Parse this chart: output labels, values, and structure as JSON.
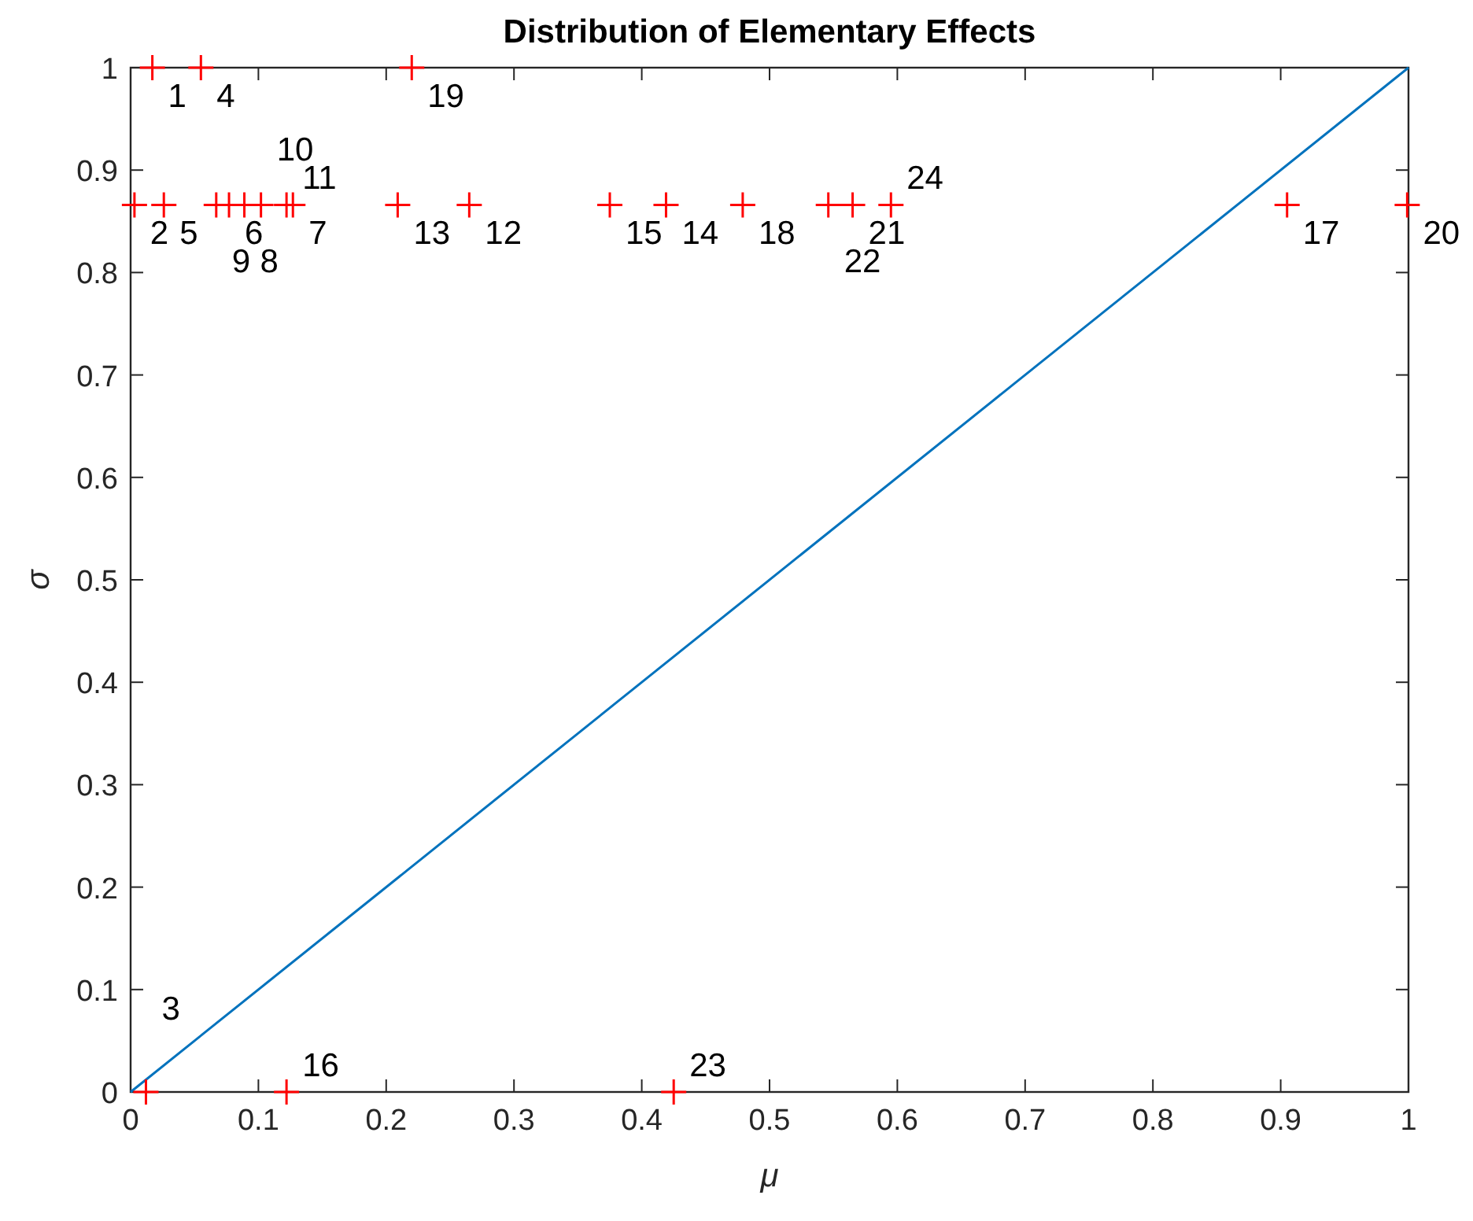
{
  "chart_data": {
    "type": "scatter",
    "title": "Distribution of Elementary Effects",
    "xlabel": "μ",
    "ylabel": "σ",
    "xlim": [
      0,
      1
    ],
    "xticks": [
      0,
      0.1,
      0.2,
      0.3,
      0.4,
      0.5,
      0.6,
      0.7,
      0.8,
      0.9,
      1
    ],
    "ylim": [
      0,
      1
    ],
    "yticks": [
      0,
      0.1,
      0.2,
      0.3,
      0.4,
      0.5,
      0.6,
      0.7,
      0.8,
      0.9,
      1
    ],
    "series": [
      {
        "type": "line",
        "color": "#0072bd",
        "x": [
          0,
          1
        ],
        "values": [
          0,
          1
        ],
        "marker": "none",
        "line_style": "solid"
      },
      {
        "color": "#ff0000",
        "marker": "cross",
        "x": [
          0.017,
          0.003,
          0.012,
          0.055,
          0.026,
          0.077,
          0.127,
          0.089,
          0.067,
          0.102,
          0.122,
          0.265,
          0.209,
          0.419,
          0.375,
          0.122,
          0.905,
          0.479,
          0.22,
          0.999,
          0.565,
          0.546,
          0.425,
          0.595
        ],
        "values": [
          1,
          0.866,
          0,
          1,
          0.866,
          0.866,
          0.866,
          0.866,
          0.866,
          0.866,
          0.866,
          0.866,
          0.866,
          0.866,
          0.866,
          0,
          0.866,
          0.866,
          1,
          0.866,
          0.866,
          0.866,
          0,
          0.866
        ]
      }
    ],
    "annotations": [
      {
        "text": "1",
        "x": 0.017,
        "y": 1
      },
      {
        "text": "2",
        "x": 0.003,
        "y": 0.866
      },
      {
        "text": "3",
        "x": 0.012,
        "y": 0
      },
      {
        "text": "4",
        "x": 0.055,
        "y": 1
      },
      {
        "text": "5",
        "x": 0.026,
        "y": 0.866
      },
      {
        "text": "6",
        "x": 0.077,
        "y": 0.866
      },
      {
        "text": "7",
        "x": 0.127,
        "y": 0.866
      },
      {
        "text": "8",
        "x": 0.089,
        "y": 0.866
      },
      {
        "text": "9",
        "x": 0.067,
        "y": 0.866
      },
      {
        "text": "10",
        "x": 0.102,
        "y": 0.866
      },
      {
        "text": "11",
        "x": 0.122,
        "y": 0.866
      },
      {
        "text": "12",
        "x": 0.265,
        "y": 0.866
      },
      {
        "text": "13",
        "x": 0.209,
        "y": 0.866
      },
      {
        "text": "14",
        "x": 0.419,
        "y": 0.866
      },
      {
        "text": "15",
        "x": 0.375,
        "y": 0.866
      },
      {
        "text": "16",
        "x": 0.122,
        "y": 0
      },
      {
        "text": "17",
        "x": 0.905,
        "y": 0.866
      },
      {
        "text": "18",
        "x": 0.479,
        "y": 0.866
      },
      {
        "text": "19",
        "x": 0.22,
        "y": 1
      },
      {
        "text": "20",
        "x": 0.999,
        "y": 0.866
      },
      {
        "text": "21",
        "x": 0.565,
        "y": 0.866
      },
      {
        "text": "22",
        "x": 0.546,
        "y": 0.866
      },
      {
        "text": "23",
        "x": 0.425,
        "y": 0
      },
      {
        "text": "24",
        "x": 0.595,
        "y": 0.866
      }
    ]
  }
}
